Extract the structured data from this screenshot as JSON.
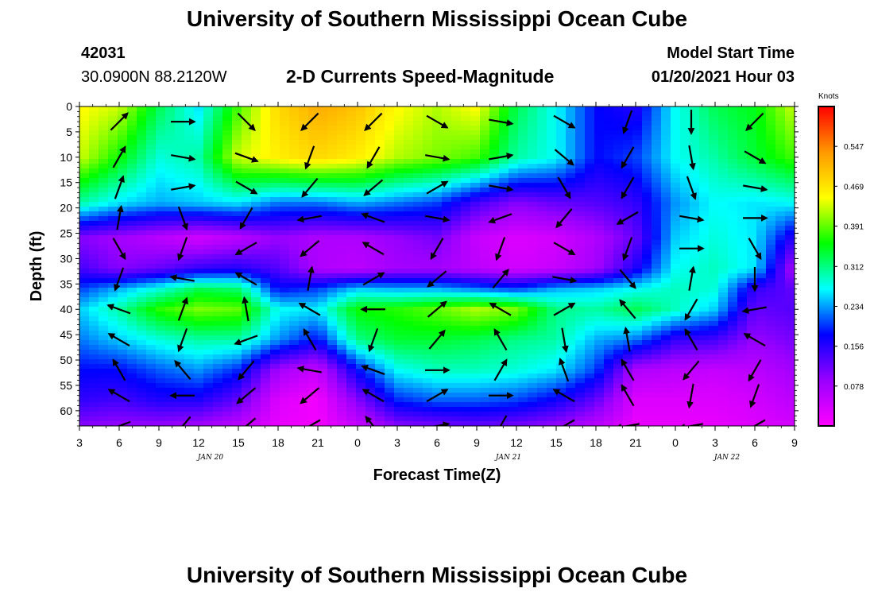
{
  "header": {
    "title": "University of Southern Mississippi Ocean Cube",
    "station_id": "42031",
    "coordinates": "30.0900N 88.2120W",
    "plot_title": "2-D Currents Speed-Magnitude",
    "model_start_label": "Model Start Time",
    "model_start_value": "01/20/2021 Hour 03"
  },
  "footer": {
    "title": "University of Southern Mississippi Ocean Cube"
  },
  "chart_data": {
    "type": "heatmap",
    "xlabel": "Forecast Time(Z)",
    "ylabel": "Depth (ft)",
    "x_tick_labels": [
      "3",
      "6",
      "9",
      "12",
      "15",
      "18",
      "21",
      "0",
      "3",
      "6",
      "9",
      "12",
      "15",
      "18",
      "21",
      "0",
      "3",
      "6",
      "9"
    ],
    "day_labels": [
      {
        "label": "JAN 20",
        "at_tick": 3.3
      },
      {
        "label": "JAN 21",
        "at_tick": 10.8
      },
      {
        "label": "JAN 22",
        "at_tick": 16.3
      }
    ],
    "y_tick_labels": [
      "0",
      "5",
      "10",
      "15",
      "20",
      "25",
      "30",
      "35",
      "40",
      "45",
      "50",
      "55",
      "60"
    ],
    "ylim": [
      0,
      63
    ],
    "colorbar": {
      "unit": "Knots",
      "tick_labels": [
        "0.547",
        "0.469",
        "0.391",
        "0.312",
        "0.234",
        "0.156",
        "0.078"
      ],
      "range": [
        0,
        0.625
      ],
      "colors": [
        "#ff00ff",
        "#9900ff",
        "#0000ff",
        "#00ffff",
        "#00ff00",
        "#ffff00",
        "#ff9900",
        "#ff0000"
      ]
    },
    "speed_layers": [
      {
        "depth_ft": 0,
        "speeds": [
          0.45,
          0.43,
          0.33,
          0.26,
          0.38,
          0.48,
          0.52,
          0.5,
          0.45,
          0.42,
          0.45,
          0.33,
          0.27,
          0.18,
          0.16,
          0.27,
          0.33,
          0.35,
          0.43
        ]
      },
      {
        "depth_ft": 10,
        "speeds": [
          0.43,
          0.36,
          0.28,
          0.3,
          0.43,
          0.46,
          0.48,
          0.46,
          0.42,
          0.4,
          0.38,
          0.3,
          0.27,
          0.18,
          0.2,
          0.27,
          0.3,
          0.34,
          0.38
        ]
      },
      {
        "depth_ft": 19,
        "speeds": [
          0.3,
          0.26,
          0.24,
          0.25,
          0.26,
          0.22,
          0.22,
          0.24,
          0.22,
          0.2,
          0.14,
          0.1,
          0.12,
          0.13,
          0.15,
          0.23,
          0.27,
          0.26,
          0.27
        ]
      },
      {
        "depth_ft": 26,
        "speeds": [
          0.1,
          0.08,
          0.06,
          0.04,
          0.06,
          0.09,
          0.07,
          0.07,
          0.09,
          0.11,
          0.05,
          0.03,
          0.04,
          0.07,
          0.12,
          0.25,
          0.28,
          0.26,
          0.15
        ]
      },
      {
        "depth_ft": 32,
        "speeds": [
          0.14,
          0.1,
          0.12,
          0.15,
          0.16,
          0.13,
          0.07,
          0.06,
          0.08,
          0.08,
          0.06,
          0.04,
          0.05,
          0.08,
          0.16,
          0.27,
          0.29,
          0.26,
          0.07
        ]
      },
      {
        "depth_ft": 36,
        "speeds": [
          0.2,
          0.24,
          0.28,
          0.33,
          0.32,
          0.18,
          0.2,
          0.25,
          0.24,
          0.24,
          0.22,
          0.2,
          0.24,
          0.25,
          0.27,
          0.29,
          0.28,
          0.15,
          0.12
        ]
      },
      {
        "depth_ft": 40,
        "speeds": [
          0.25,
          0.3,
          0.37,
          0.4,
          0.39,
          0.27,
          0.26,
          0.36,
          0.37,
          0.39,
          0.42,
          0.4,
          0.31,
          0.3,
          0.33,
          0.29,
          0.25,
          0.12,
          0.13
        ]
      },
      {
        "depth_ft": 46,
        "speeds": [
          0.22,
          0.25,
          0.28,
          0.3,
          0.3,
          0.23,
          0.18,
          0.31,
          0.34,
          0.34,
          0.33,
          0.31,
          0.3,
          0.24,
          0.22,
          0.15,
          0.14,
          0.09,
          0.11
        ]
      },
      {
        "depth_ft": 52,
        "speeds": [
          0.18,
          0.18,
          0.21,
          0.23,
          0.19,
          0.08,
          0.05,
          0.18,
          0.27,
          0.29,
          0.29,
          0.28,
          0.26,
          0.2,
          0.07,
          0.06,
          0.05,
          0.06,
          0.08
        ]
      },
      {
        "depth_ft": 58,
        "speeds": [
          0.15,
          0.14,
          0.16,
          0.16,
          0.12,
          0.03,
          0.01,
          0.1,
          0.19,
          0.21,
          0.21,
          0.2,
          0.17,
          0.12,
          0.03,
          0.03,
          0.03,
          0.04,
          0.06
        ]
      },
      {
        "depth_ft": 63,
        "speeds": [
          0.1,
          0.09,
          0.09,
          0.08,
          0.06,
          0.02,
          0.01,
          0.05,
          0.1,
          0.11,
          0.12,
          0.11,
          0.09,
          0.06,
          0.02,
          0.02,
          0.02,
          0.03,
          0.04
        ]
      }
    ],
    "vector_depths_ft": [
      3,
      10,
      16,
      22,
      28,
      34,
      40,
      46,
      52,
      57,
      63
    ],
    "vector_times": [
      1,
      2.6,
      4.2,
      5.8,
      7.4,
      9,
      10.6,
      12.2,
      13.8,
      15.4,
      17
    ],
    "vector_directions_deg": [
      [
        45,
        90,
        135,
        225,
        225,
        120,
        100,
        120,
        200,
        180,
        225
      ],
      [
        30,
        100,
        110,
        200,
        210,
        100,
        80,
        130,
        210,
        170,
        120
      ],
      [
        20,
        80,
        120,
        220,
        230,
        60,
        100,
        150,
        210,
        160,
        100
      ],
      [
        10,
        160,
        210,
        260,
        290,
        100,
        250,
        220,
        240,
        100,
        90
      ],
      [
        150,
        200,
        240,
        230,
        300,
        210,
        200,
        120,
        200,
        90,
        150
      ],
      [
        200,
        280,
        300,
        10,
        60,
        230,
        40,
        100,
        140,
        10,
        180
      ],
      [
        290,
        20,
        350,
        300,
        270,
        50,
        300,
        60,
        320,
        210,
        260
      ],
      [
        300,
        200,
        250,
        330,
        200,
        40,
        330,
        170,
        350,
        330,
        300
      ],
      [
        330,
        320,
        220,
        280,
        290,
        90,
        30,
        340,
        330,
        220,
        210
      ],
      [
        300,
        270,
        230,
        230,
        300,
        60,
        90,
        300,
        330,
        190,
        200
      ],
      [
        250,
        220,
        230,
        240,
        320,
        80,
        210,
        240,
        260,
        260,
        240
      ]
    ]
  }
}
